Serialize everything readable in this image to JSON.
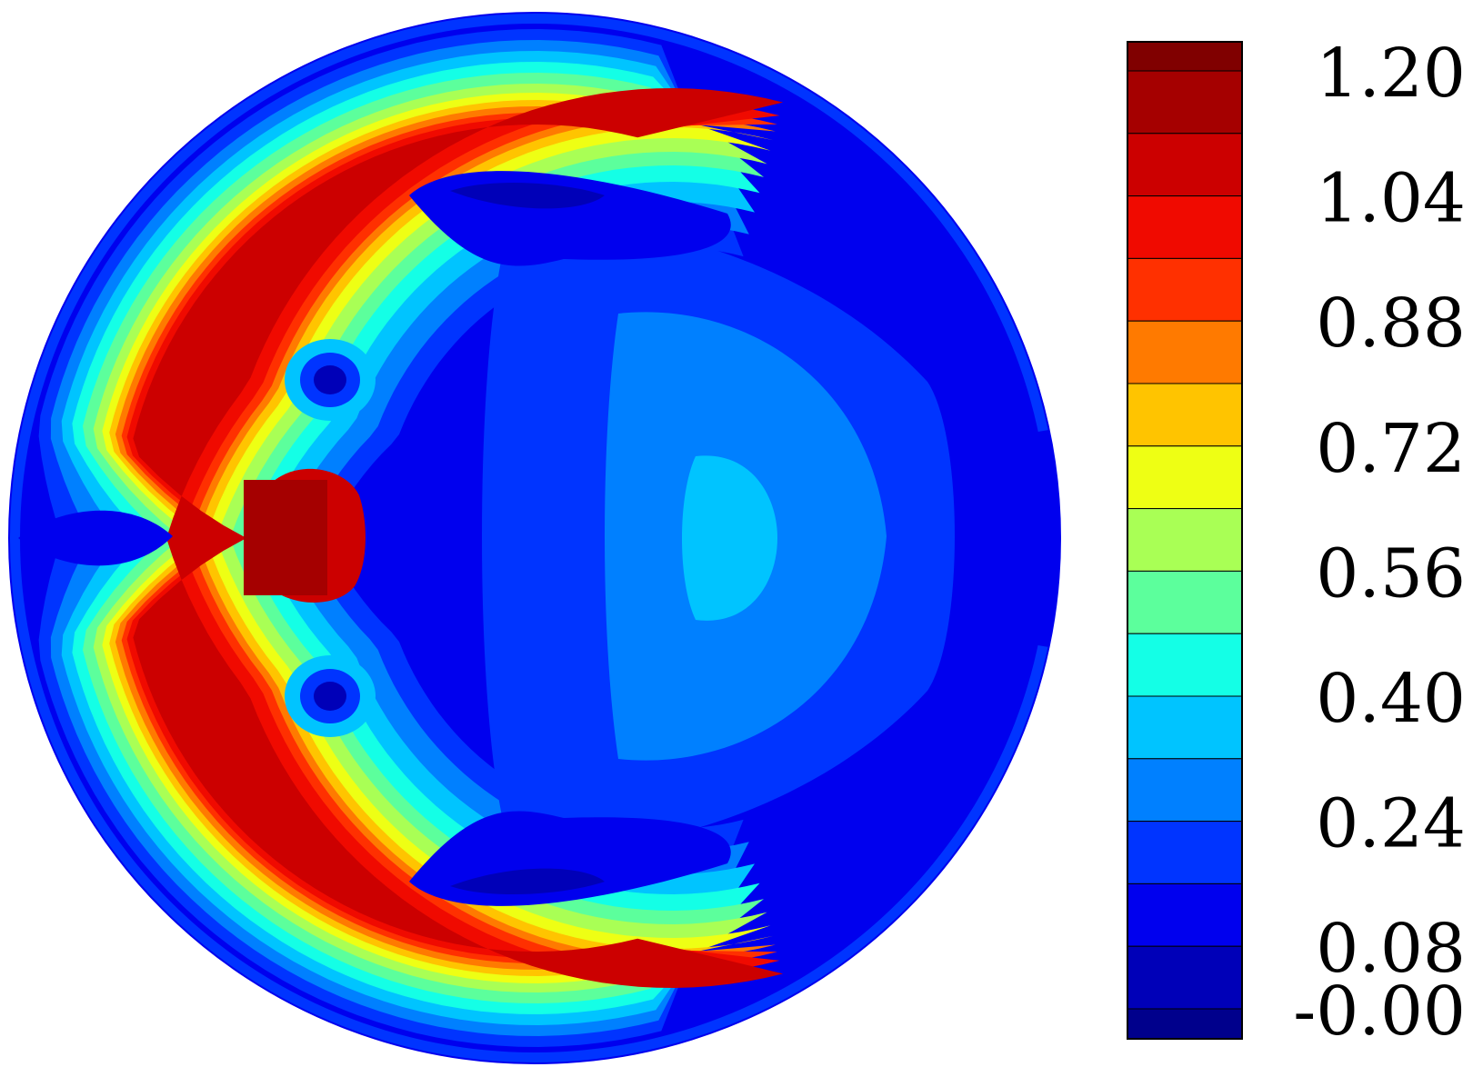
{
  "chart_data": {
    "type": "heatmap",
    "title": "",
    "xlabel": "",
    "ylabel": "",
    "domain_shape": "circle",
    "colorbar": {
      "placement": "right",
      "range": [
        0.0,
        1.28
      ],
      "level_step": 0.08,
      "tick_labels": [
        "1.20",
        "1.04",
        "0.88",
        "0.72",
        "0.56",
        "0.40",
        "0.24",
        "0.08",
        "-0.00"
      ],
      "tick_values": [
        1.2,
        1.04,
        0.88,
        0.72,
        0.56,
        0.4,
        0.24,
        0.08,
        0.0
      ],
      "levels": [
        {
          "low": 1.2,
          "high": 1.28,
          "color": "#800000"
        },
        {
          "low": 1.12,
          "high": 1.2,
          "color": "#a50000"
        },
        {
          "low": 1.04,
          "high": 1.12,
          "color": "#cc0000"
        },
        {
          "low": 0.96,
          "high": 1.04,
          "color": "#f00a00"
        },
        {
          "low": 0.88,
          "high": 0.96,
          "color": "#ff3000"
        },
        {
          "low": 0.8,
          "high": 0.88,
          "color": "#ff7a00"
        },
        {
          "low": 0.72,
          "high": 0.8,
          "color": "#ffc400"
        },
        {
          "low": 0.64,
          "high": 0.72,
          "color": "#eeff14"
        },
        {
          "low": 0.56,
          "high": 0.64,
          "color": "#a9ff55"
        },
        {
          "low": 0.48,
          "high": 0.56,
          "color": "#5cff9c"
        },
        {
          "low": 0.4,
          "high": 0.48,
          "color": "#14ffe6"
        },
        {
          "low": 0.32,
          "high": 0.4,
          "color": "#00c4ff"
        },
        {
          "low": 0.24,
          "high": 0.32,
          "color": "#0080ff"
        },
        {
          "low": 0.16,
          "high": 0.24,
          "color": "#0034ff"
        },
        {
          "low": 0.08,
          "high": 0.16,
          "color": "#0000ee"
        },
        {
          "low": 0.0,
          "high": 0.08,
          "color": "#0000b8"
        },
        {
          "low": -0.08,
          "high": 0.0,
          "color": "#00008c"
        },
        {
          "low": -0.16,
          "high": -0.08,
          "color": "#000070"
        }
      ]
    },
    "field_features": [
      {
        "name": "left crescent ridge",
        "value": 1.16
      },
      {
        "name": "central left bulge",
        "value": 1.2
      },
      {
        "name": "upper-left minimum",
        "value": 0.04
      },
      {
        "name": "lower-left minimum",
        "value": 0.04
      },
      {
        "name": "right central patch",
        "value": 0.36
      },
      {
        "name": "upper trough",
        "value": 0.04
      },
      {
        "name": "lower trough",
        "value": 0.04
      },
      {
        "name": "right edge band",
        "value": 0.1
      }
    ]
  }
}
